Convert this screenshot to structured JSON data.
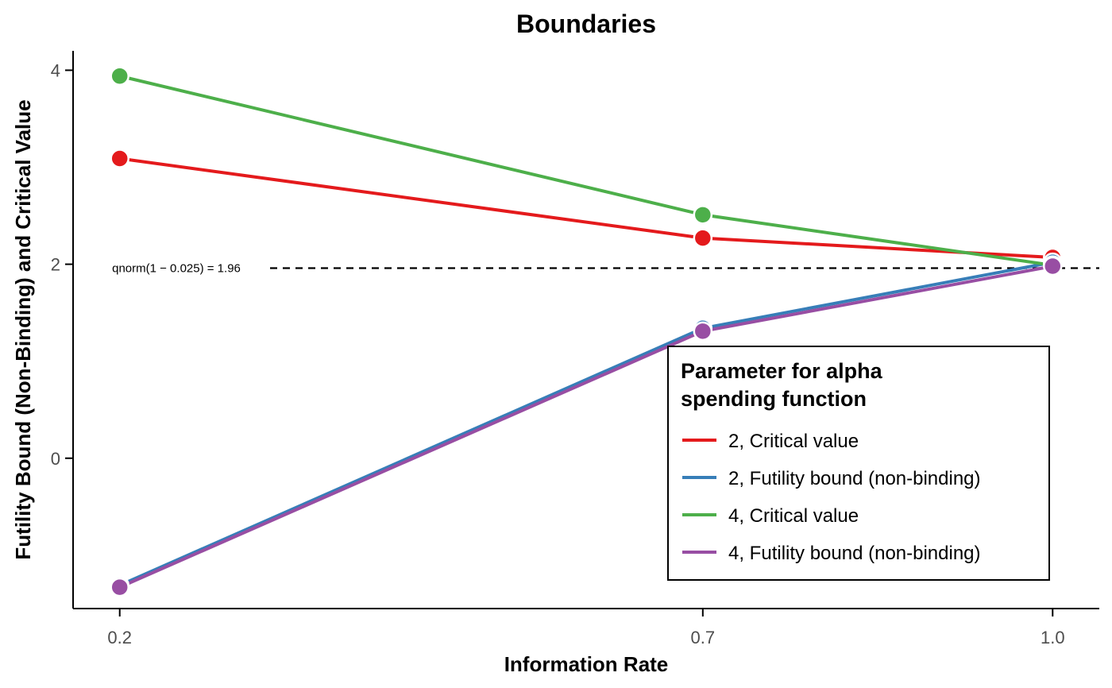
{
  "chart_data": {
    "type": "line",
    "title": "Boundaries",
    "xlabel": "Information Rate",
    "ylabel": "Futility Bound (Non-Binding) and Critical Value",
    "x": [
      0.2,
      0.7,
      1.0
    ],
    "x_tick_labels": [
      "0.2",
      "0.7",
      "1.0"
    ],
    "y_ticks": [
      0,
      2,
      4
    ],
    "y_tick_labels": [
      "0",
      "2",
      "4"
    ],
    "xlim": [
      0.16,
      1.04
    ],
    "ylim": [
      -1.55,
      4.2
    ],
    "grid": false,
    "reference_line": {
      "y": 1.96,
      "style": "dashed",
      "label": "qnorm(1 − 0.025) = 1.96"
    },
    "legend": {
      "title": [
        "Parameter for alpha",
        "spending function"
      ],
      "placement": "bottom-right"
    },
    "series": [
      {
        "name": "2, Critical value",
        "color": "#E41A1C",
        "values": [
          3.09,
          2.27,
          2.07
        ]
      },
      {
        "name": "2, Futility bound (non-binding)",
        "color": "#377EB8",
        "values": [
          -1.31,
          1.34,
          2.02
        ]
      },
      {
        "name": "4, Critical value",
        "color": "#4DAF4A",
        "values": [
          3.94,
          2.51,
          1.99
        ]
      },
      {
        "name": "4, Futility bound (non-binding)",
        "color": "#984EA3",
        "values": [
          -1.33,
          1.31,
          1.98
        ]
      }
    ]
  }
}
